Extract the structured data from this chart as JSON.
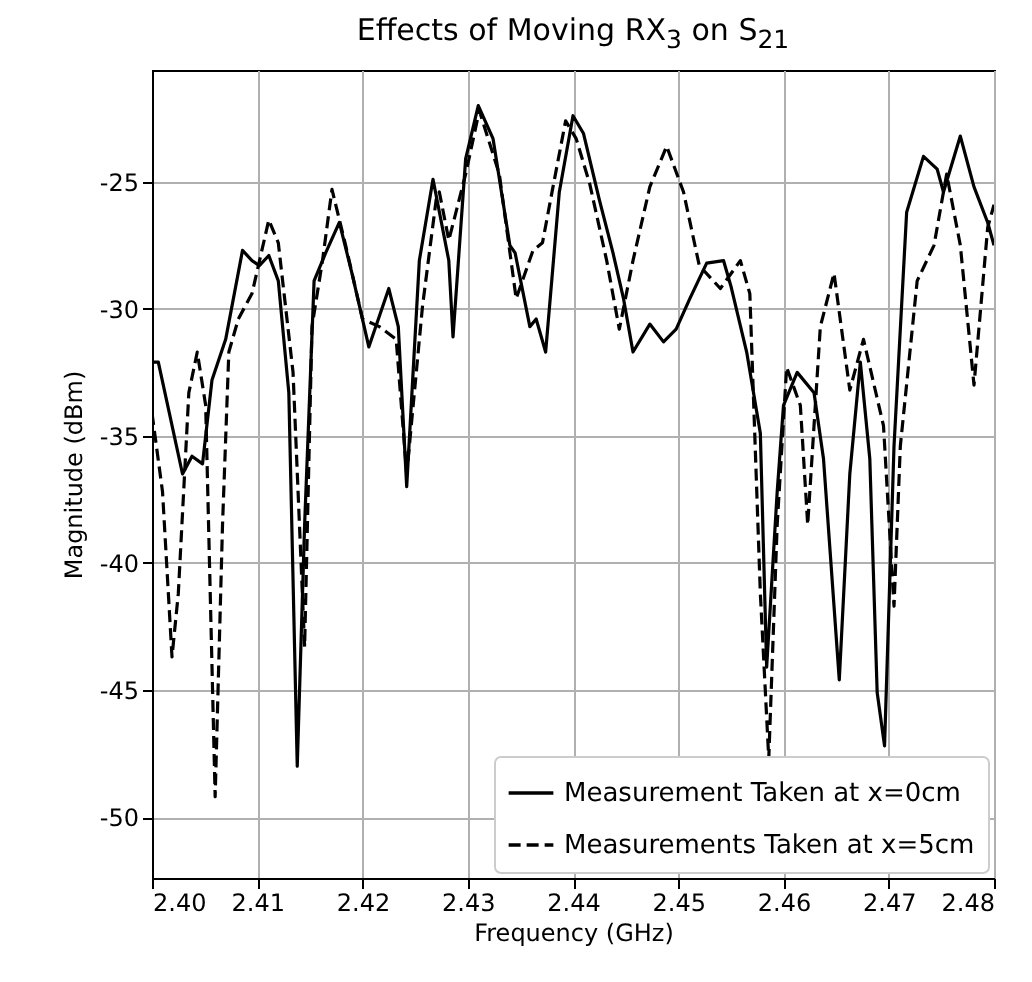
{
  "chart_data": {
    "type": "line",
    "title": "Effects of Moving RX$_{3}$ on S$_{21}$",
    "xlabel": "Frequency (GHz)",
    "ylabel": "Magnitude (dBm)",
    "xlim": [
      2.4,
      2.48
    ],
    "ylim": [
      -52.4,
      -20.6
    ],
    "xticks": [
      {
        "value": 2.4,
        "label": "2.40"
      },
      {
        "value": 2.41,
        "label": "2.41"
      },
      {
        "value": 2.42,
        "label": "2.42"
      },
      {
        "value": 2.43,
        "label": "2.43"
      },
      {
        "value": 2.44,
        "label": "2.44"
      },
      {
        "value": 2.45,
        "label": "2.45"
      },
      {
        "value": 2.46,
        "label": "2.46"
      },
      {
        "value": 2.47,
        "label": "2.47"
      },
      {
        "value": 2.48,
        "label": "2.48"
      }
    ],
    "yticks": [
      -50,
      -45,
      -40,
      -35,
      -30,
      -25
    ],
    "grid": true,
    "legend": "bottom right",
    "series": [
      {
        "name": "Measurement Taken at x=0cm",
        "color": "#000000",
        "line_style": "solid",
        "x": [
          2.4,
          2.4006,
          2.4029,
          2.4038,
          2.4048,
          2.4057,
          2.407,
          2.4086,
          2.4095,
          2.4102,
          2.4111,
          2.412,
          2.413,
          2.4138,
          2.4145,
          2.4154,
          2.4165,
          2.4178,
          2.419,
          2.4206,
          2.4225,
          2.4234,
          2.4242,
          2.4254,
          2.4267,
          2.4282,
          2.4286,
          2.4298,
          2.431,
          2.4324,
          2.434,
          2.4345,
          2.4359,
          2.4365,
          2.4374,
          2.4387,
          2.44,
          2.441,
          2.4425,
          2.4438,
          2.4448,
          2.4457,
          2.4473,
          2.4486,
          2.4498,
          2.4511,
          2.4527,
          2.4543,
          2.455,
          2.4565,
          2.4578,
          2.4584,
          2.4594,
          2.46,
          2.4613,
          2.4629,
          2.4638,
          2.4653,
          2.4663,
          2.4673,
          2.4682,
          2.4689,
          2.4696,
          2.4705,
          2.4717,
          2.4733,
          2.4746,
          2.4752,
          2.4768,
          2.4781,
          2.4794,
          2.48
        ],
        "values": [
          -32.1,
          -32.1,
          -36.5,
          -35.8,
          -36.1,
          -32.8,
          -31.2,
          -27.7,
          -28.1,
          -28.3,
          -27.9,
          -28.9,
          -33.3,
          -48.0,
          -38.5,
          -28.9,
          -27.8,
          -26.6,
          -28.6,
          -31.5,
          -29.2,
          -30.7,
          -37.0,
          -28.1,
          -24.9,
          -28.1,
          -31.1,
          -24.1,
          -22.0,
          -23.3,
          -27.5,
          -27.8,
          -30.7,
          -30.4,
          -31.7,
          -25.4,
          -22.4,
          -23.1,
          -25.7,
          -27.8,
          -29.6,
          -31.7,
          -30.6,
          -31.3,
          -30.8,
          -29.6,
          -28.2,
          -28.1,
          -29.1,
          -31.7,
          -34.9,
          -44.1,
          -37.2,
          -33.8,
          -32.5,
          -33.3,
          -35.9,
          -44.6,
          -36.5,
          -32.1,
          -35.9,
          -45.1,
          -47.2,
          -35.4,
          -26.2,
          -24.0,
          -24.5,
          -25.4,
          -23.2,
          -25.2,
          -26.6,
          -27.5
        ]
      },
      {
        "name": "Measurements Taken at x=5cm",
        "color": "#000000",
        "line_style": "dashed",
        "x": [
          2.4,
          2.401,
          2.4019,
          2.4025,
          2.4035,
          2.4043,
          2.4051,
          2.406,
          2.4067,
          2.4073,
          2.4082,
          2.4095,
          2.4111,
          2.412,
          2.4134,
          2.4145,
          2.4152,
          2.4162,
          2.4171,
          2.4184,
          2.42,
          2.4216,
          2.4232,
          2.4242,
          2.4257,
          2.427,
          2.4273,
          2.4282,
          2.4298,
          2.4311,
          2.433,
          2.4346,
          2.4362,
          2.4371,
          2.4381,
          2.4393,
          2.4403,
          2.4416,
          2.4432,
          2.4444,
          2.4457,
          2.4473,
          2.4489,
          2.4505,
          2.452,
          2.454,
          2.4559,
          2.4568,
          2.4578,
          2.4586,
          2.4594,
          2.4603,
          2.4616,
          2.4623,
          2.4635,
          2.4648,
          2.4663,
          2.4676,
          2.4695,
          2.4705,
          2.4711,
          2.4727,
          2.4743,
          2.4755,
          2.4768,
          2.4781,
          2.4794,
          2.48
        ],
        "values": [
          -34.1,
          -37.2,
          -43.7,
          -41.2,
          -33.3,
          -31.7,
          -33.8,
          -49.2,
          -38.5,
          -31.7,
          -30.4,
          -29.4,
          -26.5,
          -27.4,
          -32.5,
          -43.3,
          -30.7,
          -28.1,
          -25.3,
          -27.5,
          -30.4,
          -30.7,
          -31.2,
          -36.5,
          -29.9,
          -25.7,
          -25.4,
          -27.3,
          -24.7,
          -22.2,
          -24.7,
          -29.6,
          -27.7,
          -27.4,
          -25.2,
          -22.6,
          -23.3,
          -25.1,
          -28.1,
          -30.8,
          -28.1,
          -25.2,
          -23.6,
          -25.4,
          -28.3,
          -29.2,
          -28.1,
          -29.4,
          -41.2,
          -47.7,
          -38.5,
          -32.3,
          -33.8,
          -38.5,
          -30.7,
          -28.6,
          -33.2,
          -31.2,
          -34.6,
          -41.7,
          -35.4,
          -28.9,
          -27.5,
          -24.7,
          -27.5,
          -33.0,
          -26.8,
          -25.9
        ]
      }
    ]
  }
}
